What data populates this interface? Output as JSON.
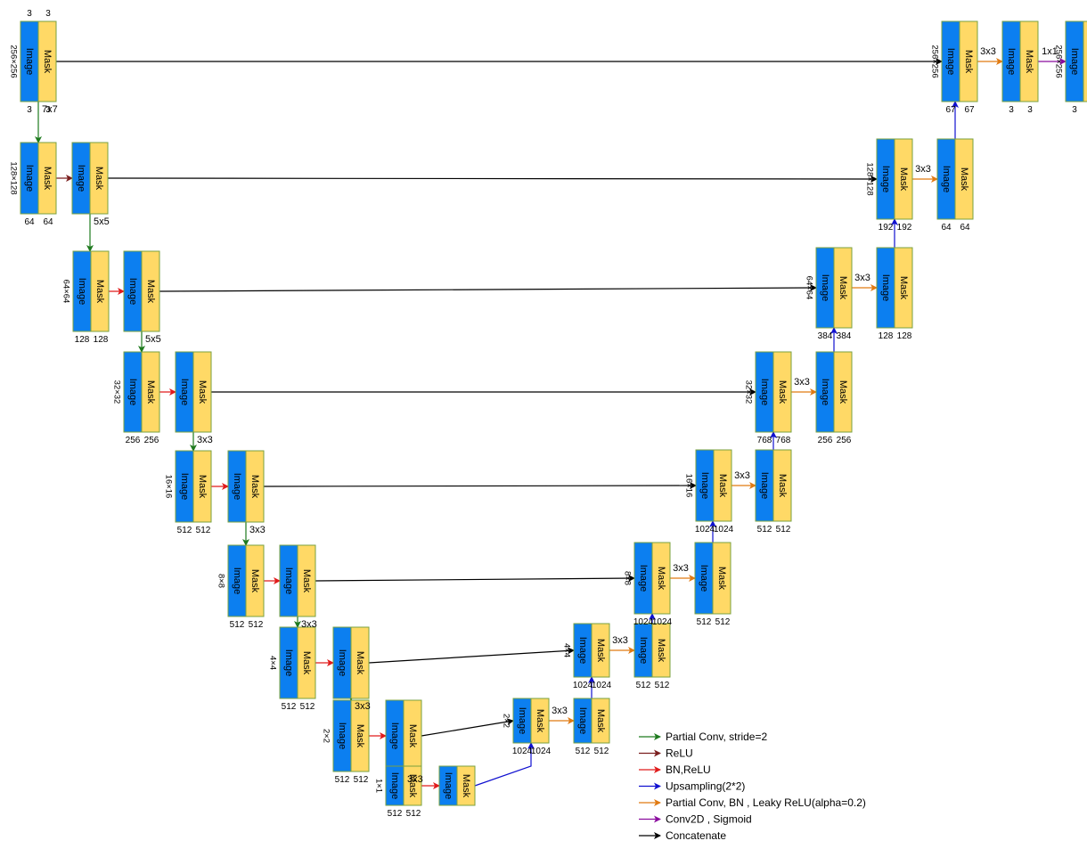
{
  "block_labels": {
    "image": "Image",
    "mask": "Mask"
  },
  "colors": {
    "image_fill": "#0c7ff0",
    "mask_fill": "#ffd966",
    "block_stroke": "#7aa13f",
    "partial_conv_stride": "#1e7a1e",
    "relu": "#7a1e1e",
    "bn_relu": "#e01b1b",
    "upsampling": "#1010d0",
    "partial_conv_bn_leaky": "#e07a12",
    "conv2d_sigmoid": "#8a0c9e",
    "concatenate": "#000000"
  },
  "legend": [
    {
      "key": "partial_conv_stride",
      "label": "Partial Conv, stride=2"
    },
    {
      "key": "relu",
      "label": "ReLU"
    },
    {
      "key": "bn_relu",
      "label": "BN,ReLU"
    },
    {
      "key": "upsampling",
      "label": "Upsampling(2*2)"
    },
    {
      "key": "partial_conv_bn_leaky",
      "label": "Partial Conv, BN , Leaky ReLU(alpha=0.2)"
    },
    {
      "key": "conv2d_sigmoid",
      "label": "Conv2D , Sigmoid"
    },
    {
      "key": "concatenate",
      "label": "Concatenate"
    }
  ],
  "encoder": [
    {
      "size": "256x256",
      "ch_image": "3",
      "ch_mask": "3",
      "kernel": "7x7"
    },
    {
      "size": "128x128",
      "ch_image": "64",
      "ch_mask": "64",
      "kernel": "5x5"
    },
    {
      "size": "64x64",
      "ch_image": "128",
      "ch_mask": "128",
      "kernel": "5x5"
    },
    {
      "size": "32x32",
      "ch_image": "256",
      "ch_mask": "256",
      "kernel": "3x3"
    },
    {
      "size": "16x16",
      "ch_image": "512",
      "ch_mask": "512",
      "kernel": "3x3"
    },
    {
      "size": "8x8",
      "ch_image": "512",
      "ch_mask": "512",
      "kernel": "3x3"
    },
    {
      "size": "4x4",
      "ch_image": "512",
      "ch_mask": "512",
      "kernel": "3x3"
    },
    {
      "size": "2x2",
      "ch_image": "512",
      "ch_mask": "512",
      "kernel": "3x3"
    },
    {
      "size": "1x1",
      "ch_image": "512",
      "ch_mask": "512",
      "kernel": ""
    }
  ],
  "decoder": [
    {
      "size": "256x256",
      "concat_image": "67",
      "concat_mask": "67",
      "kernel": "3x3",
      "out_image": "3",
      "out_mask": "3"
    },
    {
      "size": "128x128",
      "concat_image": "192",
      "concat_mask": "192",
      "kernel": "3x3",
      "out_image": "64",
      "out_mask": "64"
    },
    {
      "size": "64x64",
      "concat_image": "384",
      "concat_mask": "384",
      "kernel": "3x3",
      "out_image": "128",
      "out_mask": "128"
    },
    {
      "size": "32x32",
      "concat_image": "768",
      "concat_mask": "768",
      "kernel": "3x3",
      "out_image": "256",
      "out_mask": "256"
    },
    {
      "size": "16x16",
      "concat_image": "1024",
      "concat_mask": "1024",
      "kernel": "3x3",
      "out_image": "512",
      "out_mask": "512"
    },
    {
      "size": "8x8",
      "concat_image": "1024",
      "concat_mask": "1024",
      "kernel": "3x3",
      "out_image": "512",
      "out_mask": "512"
    },
    {
      "size": "4x4",
      "concat_image": "1024",
      "concat_mask": "1024",
      "kernel": "3x3",
      "out_image": "512",
      "out_mask": "512"
    },
    {
      "size": "2x2",
      "concat_image": "1024",
      "concat_mask": "1024",
      "kernel": "3x3",
      "out_image": "512",
      "out_mask": "512"
    }
  ],
  "final": {
    "kernel": "1x1",
    "size": "256x256",
    "ch_image": "3"
  }
}
